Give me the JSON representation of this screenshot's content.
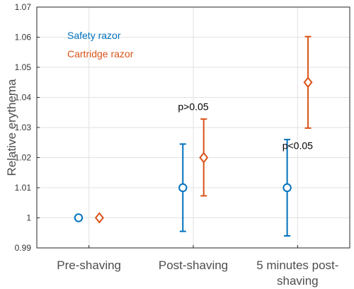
{
  "chart_data": {
    "type": "errorbar",
    "ylabel": "Relative erythema",
    "ylim": [
      0.99,
      1.07
    ],
    "yticks": [
      "0.99",
      "1",
      "1.01",
      "1.02",
      "1.03",
      "1.04",
      "1.05",
      "1.06",
      "1.07"
    ],
    "categories": [
      [
        "Pre-shaving"
      ],
      [
        "Post-shaving"
      ],
      [
        "5 minutes post-",
        "shaving"
      ]
    ],
    "grid": true,
    "legend_position": "top-left",
    "series": [
      {
        "name": "Safety razor",
        "color": "#0072BD",
        "marker": "circle",
        "values": [
          1.0,
          1.01,
          1.01
        ],
        "lower": [
          1.0,
          0.9955,
          0.994
        ],
        "upper": [
          1.0,
          1.0245,
          1.026
        ]
      },
      {
        "name": "Cartridge razor",
        "color": "#D95319",
        "marker": "diamond",
        "values": [
          1.0,
          1.02,
          1.045
        ],
        "lower": [
          1.0,
          1.0073,
          1.0298
        ],
        "upper": [
          1.0,
          1.0328,
          1.0602
        ]
      }
    ],
    "annotations": [
      {
        "text": "p>0.05",
        "x": 1,
        "y": 1.037
      },
      {
        "text": "p<0.05",
        "x": 2,
        "y": 1.024
      }
    ]
  }
}
